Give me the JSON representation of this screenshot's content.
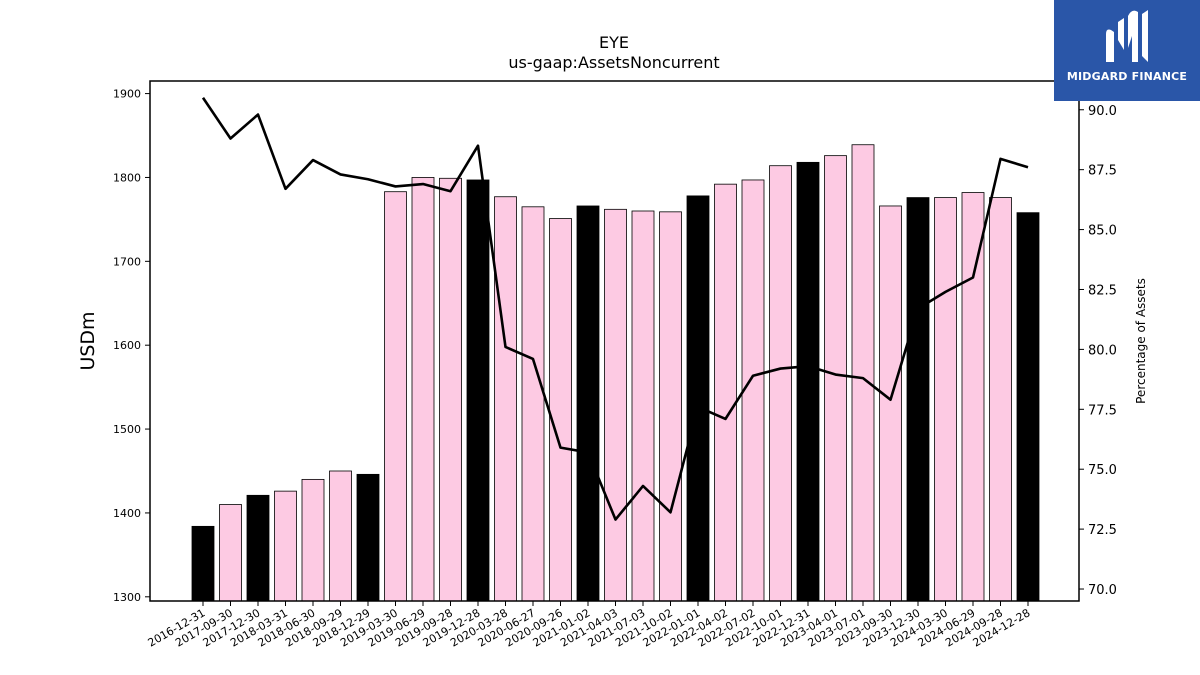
{
  "logo": {
    "text": "MIDGARD FINANCE",
    "icon": "midgard-logo-icon",
    "background": "#2a56a8"
  },
  "chart_data": {
    "type": "bar",
    "title": "EYE",
    "subtitle": "us-gaap:AssetsNoncurrent",
    "ylabel": "USDm",
    "y2label": "Percentage of Assets",
    "ylim": [
      1295,
      1915
    ],
    "y2lim": [
      69.5,
      91.2
    ],
    "yticks": [
      1300,
      1400,
      1500,
      1600,
      1700,
      1800,
      1900
    ],
    "y2ticks": [
      "70.0",
      "72.5",
      "75.0",
      "77.5",
      "80.0",
      "82.5",
      "85.0",
      "87.5",
      "90.0"
    ],
    "grid": false,
    "colors": {
      "bar_quarter": "#fdcae3",
      "bar_year_end": "#000000",
      "line": "#000000"
    },
    "categories": [
      "2016-12-31",
      "2017-09-30",
      "2017-12-30",
      "2018-03-31",
      "2018-06-30",
      "2018-09-29",
      "2018-12-29",
      "2019-03-30",
      "2019-06-29",
      "2019-09-28",
      "2019-12-28",
      "2020-03-28",
      "2020-06-27",
      "2020-09-26",
      "2021-01-02",
      "2021-04-03",
      "2021-07-03",
      "2021-10-02",
      "2022-01-01",
      "2022-04-02",
      "2022-07-02",
      "2022-10-01",
      "2022-12-31",
      "2023-04-01",
      "2023-07-01",
      "2023-09-30",
      "2023-12-30",
      "2024-03-30",
      "2024-06-29",
      "2024-09-28",
      "2024-12-28"
    ],
    "series": [
      {
        "type": "bar",
        "values": [
          1384,
          1410,
          1421,
          1426,
          1440,
          1450,
          1446,
          1783,
          1800,
          1799,
          1797,
          1777,
          1765,
          1751,
          1766,
          1762,
          1760,
          1759,
          1778,
          1792,
          1797,
          1814,
          1818,
          1826,
          1839,
          1766,
          1776,
          1776,
          1782,
          1776,
          1758
        ],
        "year_end": [
          true,
          false,
          true,
          false,
          false,
          false,
          true,
          false,
          false,
          false,
          true,
          false,
          false,
          false,
          true,
          false,
          false,
          false,
          true,
          false,
          false,
          false,
          true,
          false,
          false,
          false,
          true,
          false,
          false,
          false,
          true
        ]
      },
      {
        "type": "line",
        "axis": "right",
        "values": [
          90.5,
          88.8,
          89.8,
          86.7,
          87.9,
          87.3,
          87.1,
          86.8,
          86.9,
          86.6,
          88.5,
          80.1,
          79.6,
          75.9,
          75.7,
          72.9,
          74.3,
          73.2,
          77.6,
          77.1,
          78.9,
          79.2,
          79.3,
          78.95,
          78.8,
          77.9,
          81.7,
          82.4,
          83.0,
          87.95,
          87.6
        ]
      }
    ]
  }
}
